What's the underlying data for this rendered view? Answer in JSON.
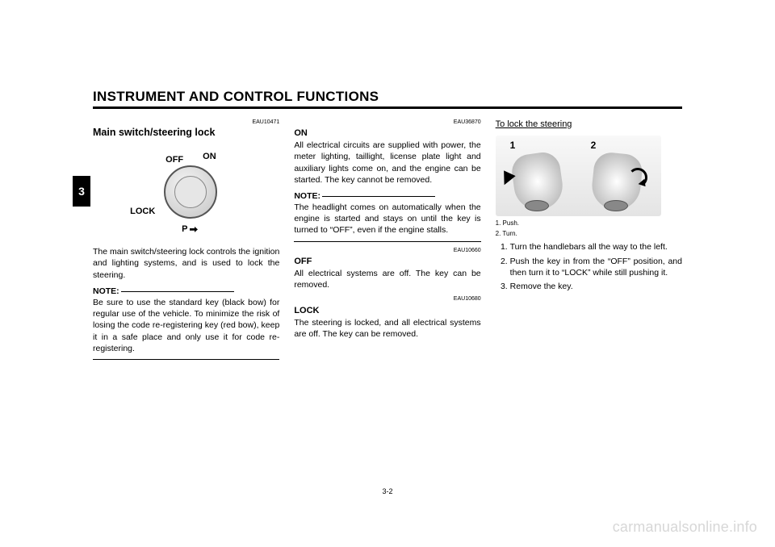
{
  "header": {
    "title": "INSTRUMENT AND CONTROL FUNCTIONS"
  },
  "chapter_tab": "3",
  "page_number": "3-2",
  "watermark": "carmanualsonline.info",
  "col1": {
    "ref": "EAU10471",
    "heading": "Main switch/steering lock",
    "diagram": {
      "on": "ON",
      "off": "OFF",
      "lock": "LOCK",
      "p": "P"
    },
    "body1": "The main switch/steering lock controls the ignition and lighting systems, and is used to lock the steering.",
    "note_label": "NOTE:",
    "note_body": "Be sure to use the standard key (black bow) for regular use of the vehicle. To minimize the risk of losing the code re-registering key (red bow), keep it in a safe place and only use it for code re-registering."
  },
  "col2": {
    "on": {
      "ref": "EAU36870",
      "head": "ON",
      "body": "All electrical circuits are supplied with power, the meter lighting, taillight, license plate light and auxiliary lights come on, and the engine can be started. The key cannot be removed."
    },
    "note_label": "NOTE:",
    "note_body": "The headlight comes on automatically when the engine is started and stays on until the key is turned to “OFF”, even if the engine stalls.",
    "off": {
      "ref": "EAU10660",
      "head": "OFF",
      "body": "All electrical systems are off. The key can be removed."
    },
    "lock": {
      "ref": "EAU10680",
      "head": "LOCK",
      "body": "The steering is locked, and all electrical systems are off. The key can be removed."
    }
  },
  "col3": {
    "subtitle": "To lock the steering",
    "photo_labels": {
      "one": "1",
      "two": "2"
    },
    "legend1": "1. Push.",
    "legend2": "2. Turn.",
    "steps": [
      "Turn the handlebars all the way to the left.",
      "Push the key in from the “OFF” position, and then turn it to “LOCK” while still pushing it.",
      "Remove the key."
    ]
  }
}
